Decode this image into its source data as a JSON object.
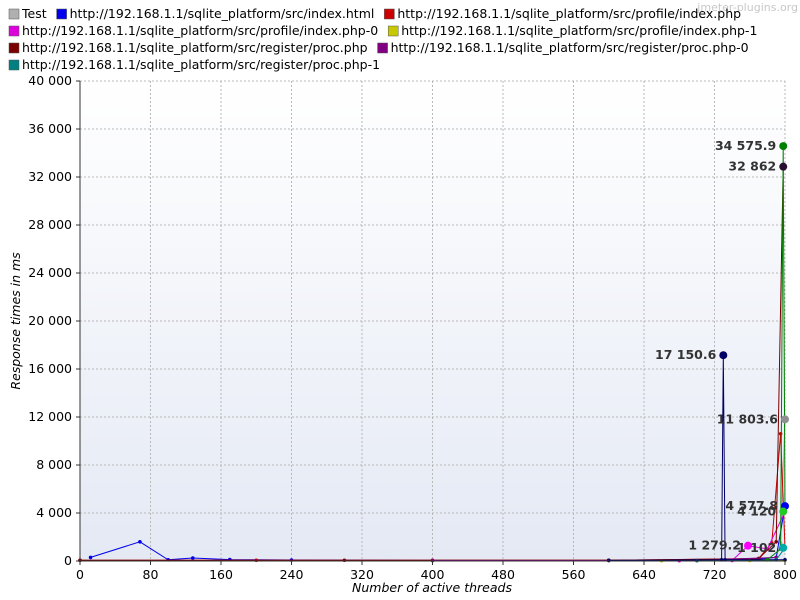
{
  "watermark": "jmeter-plugins.org",
  "chart_data": {
    "type": "line",
    "xlabel": "Number of active threads",
    "ylabel": "Response times in ms",
    "xlim": [
      0,
      800
    ],
    "ylim": [
      0,
      40000
    ],
    "xticks": [
      0,
      80,
      160,
      240,
      320,
      400,
      480,
      560,
      640,
      720,
      800
    ],
    "yticks": [
      0,
      4000,
      8000,
      12000,
      16000,
      20000,
      24000,
      28000,
      32000,
      36000,
      40000
    ],
    "xtick_labels": [
      "0",
      "80",
      "160",
      "240",
      "320",
      "400",
      "480",
      "560",
      "640",
      "720",
      "800"
    ],
    "ytick_labels": [
      "0",
      "4 000",
      "8 000",
      "12 000",
      "16 000",
      "20 000",
      "24 000",
      "28 000",
      "32 000",
      "36 000",
      "40 000"
    ],
    "grid": true,
    "legend_position": "top",
    "series": [
      {
        "name": "Test",
        "color": "#b0b0b0",
        "points": [
          [
            790,
            300
          ],
          [
            795,
            1500
          ],
          [
            800,
            11803.6
          ]
        ]
      },
      {
        "name": "http://192.168.1.1/sqlite_platform/src/index.html",
        "color": "#0000ee",
        "points": [
          [
            12,
            300
          ],
          [
            68,
            1600
          ],
          [
            100,
            100
          ],
          [
            128,
            250
          ],
          [
            170,
            120
          ],
          [
            240,
            80
          ],
          [
            400,
            50
          ],
          [
            600,
            50
          ],
          [
            760,
            100
          ],
          [
            790,
            300
          ],
          [
            800,
            4577.8
          ]
        ]
      },
      {
        "name": "http://192.168.1.1/sqlite_platform/src/profile/index.php",
        "color": "#cc0000",
        "points": [
          [
            0,
            60
          ],
          [
            200,
            60
          ],
          [
            400,
            60
          ],
          [
            600,
            60
          ],
          [
            770,
            200
          ],
          [
            785,
            1500
          ],
          [
            795,
            10600
          ],
          [
            800,
            1102
          ]
        ]
      },
      {
        "name": "http://192.168.1.1/sqlite_platform/src/profile/index.php-0",
        "color": "#dd00dd",
        "points": [
          [
            680,
            30
          ],
          [
            740,
            40
          ],
          [
            758,
            1279.2
          ],
          [
            780,
            1000
          ],
          [
            800,
            4120
          ]
        ]
      },
      {
        "name": "http://192.168.1.1/sqlite_platform/src/profile/index.php-1",
        "color": "#c8c800",
        "points": [
          [
            660,
            20
          ],
          [
            760,
            40
          ],
          [
            800,
            60
          ]
        ]
      },
      {
        "name": "http://192.168.1.1/sqlite_platform/src/register/proc.php",
        "color": "#7a0000",
        "points": [
          [
            0,
            60
          ],
          [
            300,
            60
          ],
          [
            600,
            60
          ],
          [
            770,
            200
          ],
          [
            790,
            1600
          ],
          [
            798,
            32862
          ],
          [
            800,
            32862
          ]
        ]
      },
      {
        "name": "http://192.168.1.1/sqlite_platform/src/register/proc.php-0",
        "color": "#800080",
        "points": [
          [
            400,
            40
          ],
          [
            700,
            40
          ],
          [
            790,
            300
          ]
        ]
      },
      {
        "name": "http://192.168.1.1/sqlite_platform/src/register/proc.php-1",
        "color": "#008080",
        "points": [
          [
            700,
            30
          ],
          [
            790,
            100
          ],
          [
            800,
            1102
          ]
        ]
      },
      {
        "name": "",
        "color": "#000066",
        "points": [
          [
            600,
            50
          ],
          [
            728,
            100
          ],
          [
            730,
            17150.6
          ],
          [
            732,
            100
          ],
          [
            800,
            100
          ]
        ]
      },
      {
        "name": "",
        "color": "#008000",
        "points": [
          [
            780,
            100
          ],
          [
            795,
            1000
          ],
          [
            798,
            34575.9
          ],
          [
            800,
            4120
          ]
        ]
      }
    ],
    "annotations": [
      {
        "text": "34 575.9",
        "x": 798,
        "y": 34575.9,
        "color": "#008000"
      },
      {
        "text": "32 862",
        "x": 798,
        "y": 32862,
        "color": "#2a1030"
      },
      {
        "text": "17 150.6",
        "x": 730,
        "y": 17150.6,
        "color": "#000066"
      },
      {
        "text": "11 803.6",
        "x": 800,
        "y": 11803.6,
        "color": "#909090"
      },
      {
        "text": "4 577.8",
        "x": 800,
        "y": 4577.8,
        "color": "#0000ee"
      },
      {
        "text": "4 120",
        "x": 798,
        "y": 4120,
        "color": "#22cc22"
      },
      {
        "text": "1 279.2",
        "x": 758,
        "y": 1279.2,
        "color": "#ff00ff"
      },
      {
        "text": "1 102",
        "x": 798,
        "y": 1102,
        "color": "#00aaaa"
      }
    ]
  }
}
